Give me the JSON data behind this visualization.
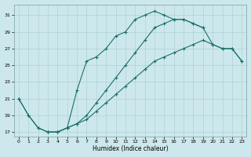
{
  "xlabel": "Humidex (Indice chaleur)",
  "bg_color": "#cde8ec",
  "grid_color": "#a8cdd2",
  "line_color": "#1a706a",
  "xlim": [
    -0.5,
    23.5
  ],
  "ylim": [
    16.5,
    32.3
  ],
  "xticks": [
    0,
    1,
    2,
    3,
    4,
    5,
    6,
    7,
    8,
    9,
    10,
    11,
    12,
    13,
    14,
    15,
    16,
    17,
    18,
    19,
    20,
    21,
    22,
    23
  ],
  "yticks": [
    17,
    19,
    21,
    23,
    25,
    27,
    29,
    31
  ],
  "curve1_x": [
    0,
    1,
    2,
    3,
    4,
    5,
    6,
    7,
    8,
    9,
    10,
    11,
    12,
    13,
    14,
    15,
    16,
    17,
    18,
    19
  ],
  "curve1_y": [
    21.0,
    19.0,
    17.5,
    17.0,
    17.0,
    17.5,
    22.0,
    25.5,
    26.0,
    27.0,
    28.5,
    29.0,
    30.5,
    31.0,
    31.5,
    31.0,
    30.5,
    30.5,
    30.0,
    29.5
  ],
  "curve2_x": [
    3,
    4,
    5,
    6,
    7,
    8,
    9,
    10,
    11,
    12,
    13,
    14,
    15,
    16,
    17,
    18,
    19,
    20,
    21,
    22,
    23
  ],
  "curve2_y": [
    17.0,
    17.0,
    17.5,
    18.0,
    19.0,
    20.5,
    22.0,
    23.5,
    25.0,
    26.5,
    28.0,
    29.5,
    30.0,
    30.5,
    30.5,
    30.0,
    29.5,
    27.5,
    27.0,
    27.0,
    25.5
  ],
  "curve3_x": [
    0,
    1,
    2,
    3,
    4,
    5,
    6,
    7,
    8,
    9,
    10,
    11,
    12,
    13,
    14,
    15,
    16,
    17,
    18,
    19,
    20,
    21,
    22,
    23
  ],
  "curve3_y": [
    21.0,
    19.0,
    17.5,
    17.0,
    17.0,
    17.5,
    18.0,
    18.5,
    19.5,
    20.5,
    21.5,
    22.5,
    23.5,
    24.5,
    25.5,
    26.0,
    26.5,
    27.0,
    27.5,
    28.0,
    27.5,
    27.0,
    27.0,
    25.5
  ]
}
